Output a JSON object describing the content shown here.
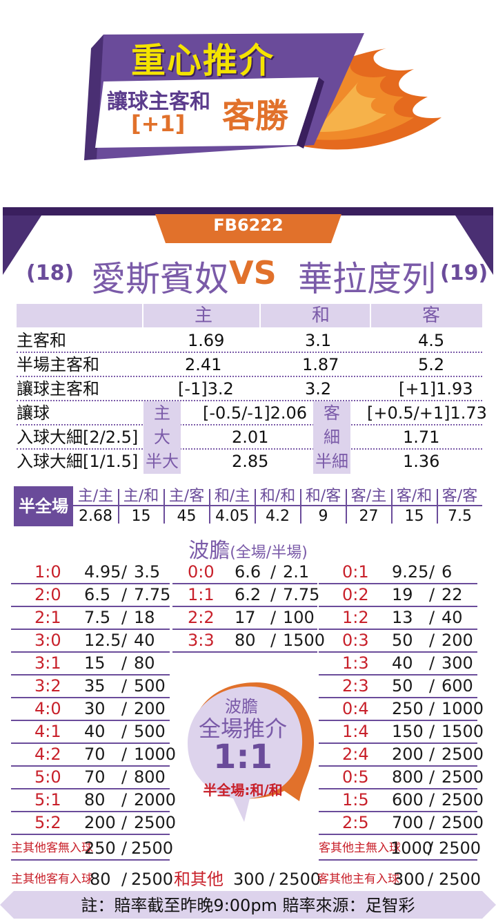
{
  "banner": {
    "title": "重心推介",
    "market": "讓球主客和",
    "handicap": "[+1]",
    "pick": "客勝"
  },
  "match": {
    "code": "FB6222",
    "home_rank": "(18)",
    "home_team": "愛斯賓奴",
    "vs": "VS",
    "away_team": "華拉度列",
    "away_rank": "(19)"
  },
  "odds": {
    "head": [
      "主",
      "和",
      "客"
    ],
    "rows": [
      {
        "label": "主客和",
        "home": "1.69",
        "draw": "3.1",
        "away": "4.5"
      },
      {
        "label": "半場主客和",
        "home": "2.41",
        "draw": "1.87",
        "away": "5.2"
      },
      {
        "label": "讓球主客和",
        "home": "[-1]3.2",
        "draw": "3.2",
        "away": "[+1]1.93"
      }
    ],
    "handicap": {
      "label": "讓球",
      "tag1": "主",
      "v1": "[-0.5/-1]2.06",
      "tag2": "客",
      "v2": "[+0.5/+1]1.73"
    },
    "goals1": {
      "label": "入球大細[2/2.5]",
      "tag1": "大",
      "v1": "2.01",
      "tag2": "細",
      "v2": "1.71"
    },
    "goals2": {
      "label": "入球大細[1/1.5]",
      "tag1": "半大",
      "v1": "2.85",
      "tag2": "半細",
      "v2": "1.36"
    }
  },
  "half_full": {
    "label": "半全場",
    "items": [
      {
        "k": "主/主",
        "v": "2.68"
      },
      {
        "k": "主/和",
        "v": "15"
      },
      {
        "k": "主/客",
        "v": "45"
      },
      {
        "k": "和/主",
        "v": "4.05"
      },
      {
        "k": "和/和",
        "v": "4.2"
      },
      {
        "k": "和/客",
        "v": "9"
      },
      {
        "k": "客/主",
        "v": "27"
      },
      {
        "k": "客/和",
        "v": "15"
      },
      {
        "k": "客/客",
        "v": "7.5"
      }
    ]
  },
  "correct_score": {
    "title": "波膽",
    "subtitle": "(全場/半場)",
    "left": [
      {
        "s": "1:0",
        "a": "4.95",
        "b": "3.5"
      },
      {
        "s": "2:0",
        "a": "6.5",
        "b": "7.75"
      },
      {
        "s": "2:1",
        "a": "7.5",
        "b": "18"
      },
      {
        "s": "3:0",
        "a": "12.5",
        "b": "40"
      },
      {
        "s": "3:1",
        "a": "15",
        "b": "80"
      },
      {
        "s": "3:2",
        "a": "35",
        "b": "500"
      },
      {
        "s": "4:0",
        "a": "30",
        "b": "200"
      },
      {
        "s": "4:1",
        "a": "40",
        "b": "500"
      },
      {
        "s": "4:2",
        "a": "70",
        "b": "1000"
      },
      {
        "s": "5:0",
        "a": "70",
        "b": "800"
      },
      {
        "s": "5:1",
        "a": "80",
        "b": "2000"
      },
      {
        "s": "5:2",
        "a": "200",
        "b": "2500"
      },
      {
        "s": "主其他客無入球",
        "a": "250",
        "b": "2500"
      }
    ],
    "middle": [
      {
        "s": "0:0",
        "a": "6.6",
        "b": "2.1"
      },
      {
        "s": "1:1",
        "a": "6.2",
        "b": "7.75"
      },
      {
        "s": "2:2",
        "a": "17",
        "b": "100"
      },
      {
        "s": "3:3",
        "a": "80",
        "b": "1500"
      }
    ],
    "right": [
      {
        "s": "0:1",
        "a": "9.25",
        "b": "6"
      },
      {
        "s": "0:2",
        "a": "19",
        "b": "22"
      },
      {
        "s": "1:2",
        "a": "13",
        "b": "40"
      },
      {
        "s": "0:3",
        "a": "50",
        "b": "200"
      },
      {
        "s": "1:3",
        "a": "40",
        "b": "300"
      },
      {
        "s": "2:3",
        "a": "50",
        "b": "600"
      },
      {
        "s": "0:4",
        "a": "250",
        "b": "1000"
      },
      {
        "s": "1:4",
        "a": "150",
        "b": "1500"
      },
      {
        "s": "2:4",
        "a": "200",
        "b": "2500"
      },
      {
        "s": "0:5",
        "a": "800",
        "b": "2500"
      },
      {
        "s": "1:5",
        "a": "600",
        "b": "2500"
      },
      {
        "s": "2:5",
        "a": "700",
        "b": "2500"
      },
      {
        "s": "客其他主無入球",
        "a": "1000",
        "b": "2500"
      }
    ],
    "last_row": [
      {
        "s": "主其他客有入球",
        "a": "80",
        "b": "2500"
      },
      {
        "s": "和其他",
        "a": "300",
        "b": "2500"
      },
      {
        "s": "客其他主有入球",
        "a": "300",
        "b": "2500"
      }
    ]
  },
  "tip": {
    "line1": "波膽",
    "line2": "全場推介",
    "score": "1:1",
    "half": "半全場:和/和"
  },
  "footer": "註：賠率截至昨晚9:00pm 賠率來源：足智彩",
  "colors": {
    "purple": "#6a4b9a",
    "lavender": "#ddd3ec",
    "orange": "#e1712b",
    "red": "#c8202a",
    "yellow": "#f4e300"
  }
}
